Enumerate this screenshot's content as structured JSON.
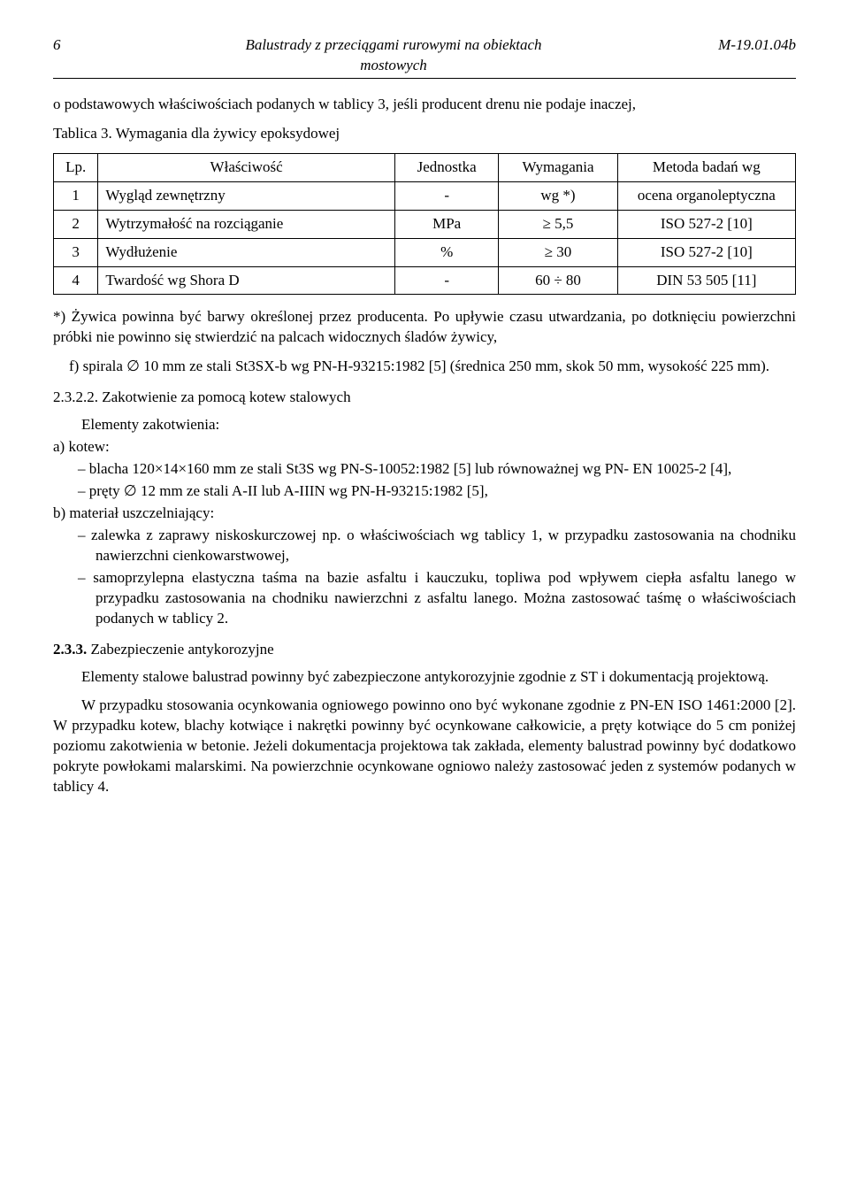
{
  "header": {
    "page_number": "6",
    "title_line1": "Balustrady z przeciągami rurowymi na obiektach",
    "title_line2": "mostowych",
    "doc_code": "M-19.01.04b"
  },
  "intro_para": "o podstawowych właściwościach podanych w tablicy 3, jeśli producent drenu nie podaje inaczej,",
  "table_caption": "Tablica 3. Wymagania dla żywicy epoksydowej",
  "table": {
    "columns": [
      "Lp.",
      "Właściwość",
      "Jednostka",
      "Wymagania",
      "Metoda badań wg"
    ],
    "col_widths": [
      "6%",
      "40%",
      "14%",
      "16%",
      "24%"
    ],
    "rows": [
      [
        "1",
        "Wygląd zewnętrzny",
        "-",
        "wg *)",
        "ocena organoleptyczna"
      ],
      [
        "2",
        "Wytrzymałość na rozciąganie",
        "MPa",
        "≥ 5,5",
        "ISO 527-2 [10]"
      ],
      [
        "3",
        "Wydłużenie",
        "%",
        "≥ 30",
        "ISO 527-2 [10]"
      ],
      [
        "4",
        "Twardość wg Shora D",
        "-",
        "60 ÷ 80",
        "DIN 53 505 [11]"
      ]
    ]
  },
  "footnote_para": "*) Żywica powinna być barwy określonej przez producenta. Po upływie czasu utwardzania, po dotknięciu powierzchni próbki nie powinno się stwierdzić na palcach widocznych śladów żywicy,",
  "f_item": "f)  spirala ∅ 10 mm ze stali St3SX-b  wg  PN-H-93215:1982 [5] (średnica 250 mm, skok 50 mm, wysokość 225 mm).",
  "sec_2_3_2_2": {
    "title": "2.3.2.2. Zakotwienie za pomocą kotew stalowych",
    "elements_label": "Elementy zakotwienia:",
    "a_label": "a) kotew:",
    "a_items": [
      "–   blacha 120×14×160 mm ze stali St3S wg  PN-S-10052:1982 [5] lub równoważnej wg PN- EN 10025-2 [4],",
      "–   pręty ∅ 12 mm ze stali A-II lub A-IIIN wg PN-H-93215:1982 [5],"
    ],
    "b_label": "b) materiał uszczelniający:",
    "b_items": [
      "–   zalewka z zaprawy niskoskurczowej np. o właściwościach wg  tablicy 1, w przypadku zastosowania na chodniku nawierzchni cienkowarstwowej,",
      "–   samoprzylepna elastyczna taśma na bazie asfaltu i kauczuku, topliwa pod wpływem ciepła asfaltu lanego w przypadku zastosowania na chodniku nawierzchni z asfaltu lanego. Można zastosować taśmę o właściwościach podanych w tablicy 2."
    ]
  },
  "sec_2_3_3": {
    "title": "2.3.3.  Zabezpieczenie antykorozyjne",
    "para1": "Elementy stalowe balustrad powinny być zabezpieczone antykorozyjnie zgodnie z ST i dokumentacją projektową.",
    "para2": "W przypadku stosowania ocynkowania ogniowego powinno ono być wykonane zgodnie z PN-EN ISO 1461:2000 [2]. W przypadku kotew, blachy kotwiące i nakrętki powinny być ocynkowane całkowicie, a pręty kotwiące do 5 cm poniżej poziomu zakotwienia w betonie. Jeżeli dokumentacja projektowa tak zakłada, elementy balustrad powinny być dodatkowo pokryte powłokami malarskimi. Na powierzchnie ocynkowane ogniowo należy zastosować jeden z systemów podanych w tablicy 4."
  }
}
